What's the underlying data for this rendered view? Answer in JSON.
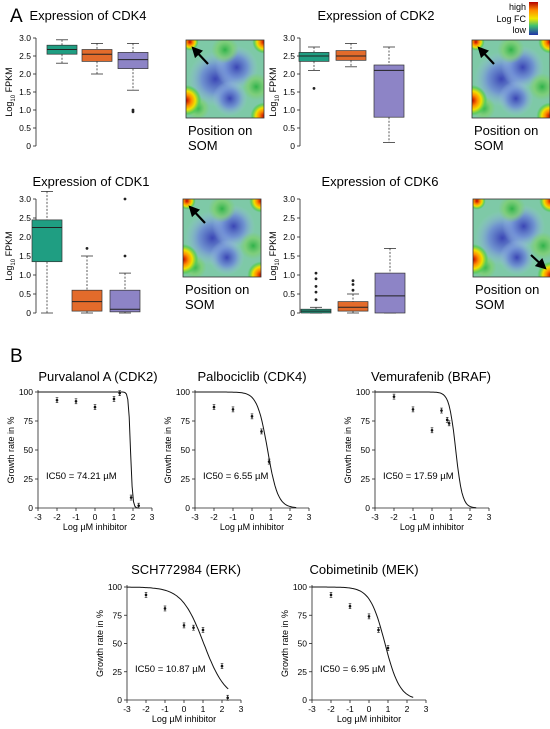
{
  "panels": {
    "a": "A",
    "b": "B"
  },
  "colors": {
    "green": "#1f9e82",
    "orange": "#e36b2b",
    "purple": "#8d84c6",
    "black": "#111111"
  },
  "som_legend": {
    "high": "high",
    "mid": "Log FC",
    "low": "low"
  },
  "som_caption": "Position on SOM",
  "chart_data": [
    {
      "type": "box",
      "title": "Expression of CDK4",
      "ylabel": "Log10 FPKM",
      "ylim": [
        0,
        3.0
      ],
      "yticks": [
        "0",
        "0.5",
        "1.0",
        "1.5",
        "2.0",
        "2.5",
        "3.0"
      ],
      "boxes": [
        {
          "color": "green",
          "whisker_low": 2.3,
          "q1": 2.55,
          "median": 2.68,
          "q3": 2.8,
          "whisker_high": 2.95,
          "outliers": []
        },
        {
          "color": "orange",
          "whisker_low": 2.0,
          "q1": 2.35,
          "median": 2.55,
          "q3": 2.68,
          "whisker_high": 2.85,
          "outliers": []
        },
        {
          "color": "purple",
          "whisker_low": 1.55,
          "q1": 2.15,
          "median": 2.4,
          "q3": 2.6,
          "whisker_high": 2.85,
          "outliers": [
            0.95,
            1.0
          ]
        }
      ],
      "som_arrow": "top-left"
    },
    {
      "type": "box",
      "title": "Expression of CDK2",
      "ylabel": "Log10 FPKM",
      "ylim": [
        0,
        3.0
      ],
      "yticks": [
        "0",
        "0.5",
        "1.0",
        "1.5",
        "2.0",
        "2.5",
        "3.0"
      ],
      "boxes": [
        {
          "color": "green",
          "whisker_low": 2.1,
          "q1": 2.35,
          "median": 2.5,
          "q3": 2.6,
          "whisker_high": 2.75,
          "outliers": [
            1.6
          ]
        },
        {
          "color": "orange",
          "whisker_low": 2.2,
          "q1": 2.38,
          "median": 2.5,
          "q3": 2.65,
          "whisker_high": 2.85,
          "outliers": []
        },
        {
          "color": "purple",
          "whisker_low": 0.1,
          "q1": 0.8,
          "median": 2.1,
          "q3": 2.25,
          "whisker_high": 2.75,
          "outliers": []
        }
      ],
      "som_arrow": "top-left"
    },
    {
      "type": "box",
      "title": "Expression of CDK1",
      "ylabel": "Log10 FPKM",
      "ylim": [
        0,
        3.0
      ],
      "yticks": [
        "0",
        "0.5",
        "1.0",
        "1.5",
        "2.0",
        "2.5",
        "3.0"
      ],
      "boxes": [
        {
          "color": "green",
          "whisker_low": 0.0,
          "q1": 1.35,
          "median": 2.25,
          "q3": 2.45,
          "whisker_high": 3.2,
          "outliers": []
        },
        {
          "color": "orange",
          "whisker_low": 0.0,
          "q1": 0.05,
          "median": 0.3,
          "q3": 0.6,
          "whisker_high": 1.5,
          "outliers": [
            1.7
          ]
        },
        {
          "color": "purple",
          "whisker_low": 0.0,
          "q1": 0.03,
          "median": 0.1,
          "q3": 0.6,
          "whisker_high": 1.05,
          "outliers": [
            1.5,
            3.0
          ]
        }
      ],
      "som_arrow": "top-left"
    },
    {
      "type": "box",
      "title": "Expression of CDK6",
      "ylabel": "Log10 FPKM",
      "ylim": [
        0,
        3.0
      ],
      "yticks": [
        "0",
        "0.5",
        "1.0",
        "1.5",
        "2.0",
        "2.5",
        "3.0"
      ],
      "boxes": [
        {
          "color": "green",
          "whisker_low": 0.0,
          "q1": 0.0,
          "median": 0.05,
          "q3": 0.1,
          "whisker_high": 0.15,
          "outliers": [
            0.35,
            0.55,
            0.7,
            0.9,
            1.05
          ]
        },
        {
          "color": "orange",
          "whisker_low": 0.0,
          "q1": 0.05,
          "median": 0.15,
          "q3": 0.3,
          "whisker_high": 0.5,
          "outliers": [
            0.6,
            0.75,
            0.85
          ]
        },
        {
          "color": "purple",
          "whisker_low": 0.0,
          "q1": 0.0,
          "median": 0.45,
          "q3": 1.05,
          "whisker_high": 1.7,
          "outliers": []
        }
      ],
      "som_arrow": "bottom-right"
    },
    {
      "type": "scatter",
      "title": "Purvalanol A (CDK2)",
      "ylabel": "Growth rate in %",
      "xlabel": "Log µM inhibitor",
      "xlim": [
        -3,
        3
      ],
      "ylim": [
        0,
        100
      ],
      "xticks": [
        "-3",
        "-2",
        "-1",
        "0",
        "1",
        "2",
        "3"
      ],
      "yticks": [
        "0",
        "25",
        "50",
        "75",
        "100"
      ],
      "points": [
        {
          "x": -2,
          "y": 93
        },
        {
          "x": -1,
          "y": 92
        },
        {
          "x": 0,
          "y": 87
        },
        {
          "x": 1,
          "y": 94
        },
        {
          "x": 1.3,
          "y": 99
        },
        {
          "x": 1.9,
          "y": 9
        },
        {
          "x": 2.3,
          "y": 2
        }
      ],
      "ic50_text": "IC50 = 74.21 µM",
      "curve": {
        "logic50": 1.87,
        "hill": 8
      }
    },
    {
      "type": "scatter",
      "title": "Palbociclib (CDK4)",
      "ylabel": "Growth rate in %",
      "xlabel": "Log µM inhibitor",
      "xlim": [
        -3,
        3
      ],
      "ylim": [
        0,
        100
      ],
      "xticks": [
        "-3",
        "-2",
        "-1",
        "0",
        "1",
        "2",
        "3"
      ],
      "yticks": [
        "0",
        "25",
        "50",
        "75",
        "100"
      ],
      "points": [
        {
          "x": -2,
          "y": 87
        },
        {
          "x": -1,
          "y": 85
        },
        {
          "x": 0,
          "y": 79
        },
        {
          "x": 0.5,
          "y": 66
        },
        {
          "x": 0.9,
          "y": 40
        }
      ],
      "ic50_text": "IC50 = 6.55 µM",
      "curve": {
        "logic50": 0.82,
        "hill": 1.6
      }
    },
    {
      "type": "scatter",
      "title": "Vemurafenib (BRAF)",
      "ylabel": "Growth rate in %",
      "xlabel": "Log µM inhibitor",
      "xlim": [
        -3,
        3
      ],
      "ylim": [
        0,
        100
      ],
      "xticks": [
        "-3",
        "-2",
        "-1",
        "0",
        "1",
        "2",
        "3"
      ],
      "yticks": [
        "0",
        "25",
        "50",
        "75",
        "100"
      ],
      "points": [
        {
          "x": -2,
          "y": 96
        },
        {
          "x": -1,
          "y": 85
        },
        {
          "x": 0,
          "y": 67
        },
        {
          "x": 0.5,
          "y": 84
        },
        {
          "x": 0.8,
          "y": 76
        },
        {
          "x": 0.9,
          "y": 73
        }
      ],
      "ic50_text": "IC50 = 17.59 µM",
      "curve": {
        "logic50": 1.25,
        "hill": 2.5
      }
    },
    {
      "type": "scatter",
      "title": "SCH772984 (ERK)",
      "ylabel": "Growth rate in %",
      "xlabel": "Log µM inhibitor",
      "xlim": [
        -3,
        3
      ],
      "ylim": [
        0,
        100
      ],
      "xticks": [
        "-3",
        "-2",
        "-1",
        "0",
        "1",
        "2",
        "3"
      ],
      "yticks": [
        "0",
        "25",
        "50",
        "75",
        "100"
      ],
      "points": [
        {
          "x": -2,
          "y": 93
        },
        {
          "x": -1,
          "y": 81
        },
        {
          "x": 0,
          "y": 66
        },
        {
          "x": 0.5,
          "y": 64
        },
        {
          "x": 1,
          "y": 62
        },
        {
          "x": 2,
          "y": 30
        },
        {
          "x": 2.3,
          "y": 2
        }
      ],
      "ic50_text": "IC50 = 10.87 µM",
      "curve": {
        "logic50": 1.04,
        "hill": 0.75
      }
    },
    {
      "type": "scatter",
      "title": "Cobimetinib (MEK)",
      "ylabel": "Growth rate in %",
      "xlabel": "Log µM inhibitor",
      "xlim": [
        -3,
        3
      ],
      "ylim": [
        0,
        100
      ],
      "xticks": [
        "-3",
        "-2",
        "-1",
        "0",
        "1",
        "2",
        "3"
      ],
      "yticks": [
        "0",
        "25",
        "50",
        "75",
        "100"
      ],
      "points": [
        {
          "x": -2,
          "y": 93
        },
        {
          "x": -1,
          "y": 83
        },
        {
          "x": 0,
          "y": 74
        },
        {
          "x": 0.5,
          "y": 62
        },
        {
          "x": 1,
          "y": 46
        }
      ],
      "ic50_text": "IC50 = 6.95 µM",
      "curve": {
        "logic50": 0.84,
        "hill": 1.1
      }
    }
  ]
}
